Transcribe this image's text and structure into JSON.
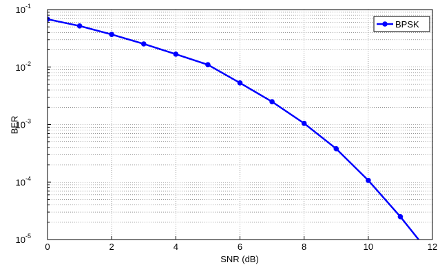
{
  "chart_data": {
    "type": "line",
    "log_y": true,
    "grid": true,
    "legend": "upper right",
    "xlabel": "SNR (dB)",
    "ylabel": "BER",
    "x": [
      0,
      1,
      2,
      3,
      4,
      5,
      6,
      7,
      8,
      9,
      10,
      11,
      12
    ],
    "series": [
      {
        "name": "BPSK",
        "color": "#0000ff",
        "values": [
          0.068,
          0.052,
          0.037,
          0.0253,
          0.0168,
          0.011,
          0.0053,
          0.0025,
          0.00105,
          0.00038,
          0.000107,
          2.5e-05,
          5e-06
        ]
      }
    ],
    "xlim": [
      0,
      12
    ],
    "xticks": [
      0,
      2,
      4,
      6,
      8,
      10,
      12
    ],
    "ylim": [
      1e-05,
      0.1
    ],
    "yticks": [
      {
        "value": 1e-05,
        "label": "10",
        "exponent": "-5"
      },
      {
        "value": 0.0001,
        "label": "10",
        "exponent": "-4"
      },
      {
        "value": 0.001,
        "label": "10",
        "exponent": "-3"
      },
      {
        "value": 0.01,
        "label": "10",
        "exponent": "-2"
      },
      {
        "value": 0.1,
        "label": "10",
        "exponent": "-1"
      }
    ]
  }
}
